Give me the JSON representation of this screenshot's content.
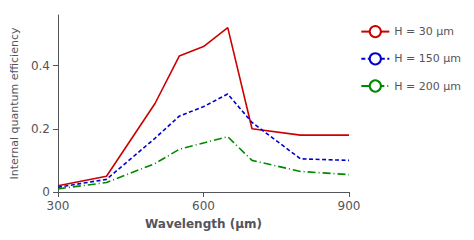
{
  "chart_data": {
    "type": "line",
    "xlabel": "Wavelength (μm)",
    "ylabel": "Internal quantum efficiency",
    "x": [
      300,
      400,
      500,
      550,
      600,
      650,
      700,
      800,
      900
    ],
    "series": [
      {
        "name": "H = 30 μm",
        "color": "#cc0000",
        "line_style": "solid",
        "values": [
          0.02,
          0.05,
          0.28,
          0.43,
          0.46,
          0.52,
          0.2,
          0.18,
          0.18
        ]
      },
      {
        "name": "H = 150 μm",
        "color": "#0000cc",
        "line_style": "dashed",
        "values": [
          0.015,
          0.04,
          0.17,
          0.24,
          0.27,
          0.31,
          0.22,
          0.105,
          0.1
        ]
      },
      {
        "name": "H = 200 μm",
        "color": "#008800",
        "line_style": "dashdot",
        "values": [
          0.01,
          0.03,
          0.09,
          0.135,
          0.155,
          0.175,
          0.1,
          0.065,
          0.055
        ]
      }
    ],
    "xlim": [
      300,
      900
    ],
    "ylim": [
      0,
      0.56
    ],
    "xticks": [
      300,
      600,
      900
    ],
    "yticks": [
      0,
      0.2,
      0.4
    ],
    "grid": false,
    "legend": "right"
  }
}
